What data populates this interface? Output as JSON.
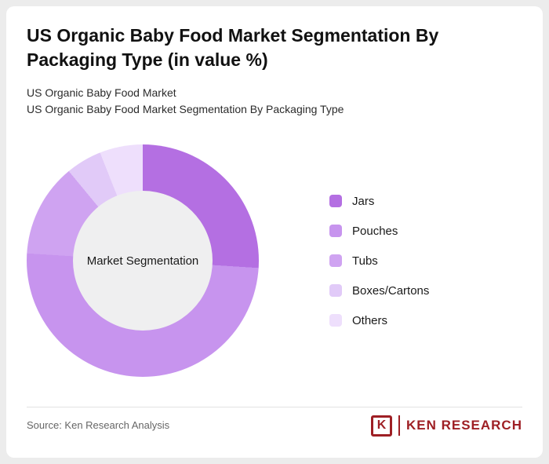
{
  "header": {
    "title": "US Organic Baby Food Market Segmentation By Packaging Type (in value %)",
    "subtitle1": "US Organic Baby Food Market",
    "subtitle2": "US Organic Baby Food Market Segmentation By Packaging Type"
  },
  "chart_data": {
    "type": "pie",
    "variant": "donut",
    "title": "US Organic Baby Food Market Segmentation By Packaging Type (in value %)",
    "center_label": "Market Segmentation",
    "categories": [
      "Jars",
      "Pouches",
      "Tubs",
      "Boxes/Cartons",
      "Others"
    ],
    "values": [
      26,
      50,
      13,
      5,
      6
    ],
    "colors": [
      "#b46fe2",
      "#c794ee",
      "#cfa3f1",
      "#e1caf8",
      "#eedffc"
    ],
    "units": "percent of market value",
    "start_angle_deg": 0,
    "direction": "clockwise",
    "legend_position": "right",
    "hole_color": "#efeff0"
  },
  "footer": {
    "source": "Source: Ken Research Analysis",
    "logo_k": "K",
    "logo_text": "KEN RESEARCH",
    "logo_color": "#9e1f24"
  }
}
